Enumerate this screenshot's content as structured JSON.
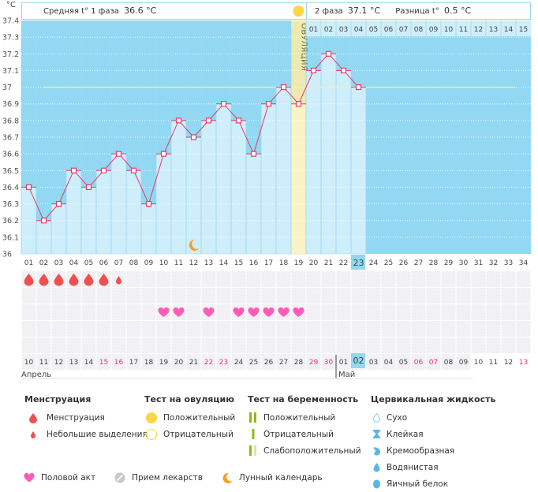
{
  "header": {
    "unit": "°C",
    "phase1_label": "Средняя t° 1 фаза",
    "phase1_value": "36.6 °C",
    "phase2_label": "2 фаза",
    "phase2_value": "37.1 °C",
    "diff_label": "Разница t°",
    "diff_value": "0.5 °C"
  },
  "ovulation_label": "ОВУЛЯЦИЯ",
  "chart_data": {
    "type": "line",
    "title": "",
    "xlabel": "",
    "ylabel": "°C",
    "ylim": [
      36.0,
      37.4
    ],
    "y_ticks": [
      "36",
      "36.1",
      "36.2",
      "36.3",
      "36.4",
      "36.5",
      "36.6",
      "36.7",
      "36.8",
      "36.9",
      "37",
      "37.1",
      "37.2",
      "37.3",
      "37.4"
    ],
    "cycle_days": [
      "01",
      "02",
      "03",
      "04",
      "05",
      "06",
      "07",
      "08",
      "09",
      "10",
      "11",
      "12",
      "13",
      "14",
      "15",
      "16",
      "17",
      "18",
      "19",
      "20",
      "21",
      "22",
      "23",
      "24",
      "25",
      "26",
      "27",
      "28",
      "29",
      "30",
      "31",
      "32",
      "33",
      "34"
    ],
    "current_cycle_day": "23",
    "series": [
      {
        "name": "Базальная температура",
        "color": "#e8396b",
        "values": [
          36.4,
          36.2,
          36.3,
          36.5,
          36.4,
          36.5,
          36.6,
          36.5,
          36.3,
          36.6,
          36.8,
          36.7,
          36.8,
          36.9,
          36.8,
          36.6,
          36.9,
          37.0,
          36.9,
          37.1,
          37.2,
          37.1,
          37.0
        ]
      }
    ],
    "coverline": {
      "value": 37.0,
      "color": "#f5f0a0",
      "from_day": "02",
      "to_day": "33"
    },
    "ovulation_day": "19",
    "phase2_day_labels": [
      "01",
      "02",
      "03",
      "04",
      "05",
      "06",
      "07",
      "08",
      "09",
      "10",
      "11",
      "12",
      "13",
      "14",
      "15"
    ],
    "calendar_dates": [
      "10",
      "11",
      "12",
      "13",
      "14",
      "15",
      "16",
      "17",
      "18",
      "19",
      "20",
      "21",
      "22",
      "23",
      "24",
      "25",
      "26",
      "27",
      "28",
      "29",
      "30",
      "01",
      "02",
      "03",
      "04",
      "05",
      "06",
      "07",
      "08",
      "09",
      "10",
      "11",
      "12",
      "13"
    ],
    "weekend_date_indices": [
      5,
      6,
      12,
      13,
      19,
      20,
      26,
      27,
      33
    ],
    "today_date": "02",
    "months": [
      {
        "name": "Апрель",
        "start_index": 0
      },
      {
        "name": "Май",
        "start_index": 21
      }
    ],
    "menstruation": [
      {
        "day": "01",
        "type": "full"
      },
      {
        "day": "02",
        "type": "full"
      },
      {
        "day": "03",
        "type": "full"
      },
      {
        "day": "04",
        "type": "full"
      },
      {
        "day": "05",
        "type": "full"
      },
      {
        "day": "06",
        "type": "full"
      },
      {
        "day": "07",
        "type": "light"
      }
    ],
    "intercourse_days": [
      "10",
      "11",
      "13",
      "15",
      "16",
      "17",
      "18",
      "19"
    ],
    "lunar_days": [
      "12"
    ],
    "colors": {
      "plot_bg": "#92d8f2",
      "bar_fill": "#cfeefb",
      "ovulation_fill": "#fbf2c6",
      "grid": "#ffffff",
      "today_highlight": "#92d8f2",
      "weekend_text": "#e8396b",
      "drop": "#f05050",
      "heart": "#ff5cb8",
      "moon": "#f5a020"
    }
  },
  "legend": {
    "menstruation": {
      "title": "Менструация",
      "items": [
        "Менструация",
        "Небольшие выделения"
      ]
    },
    "ovulation_test": {
      "title": "Тест на овуляцию",
      "items": [
        "Положительный",
        "Отрицательный"
      ]
    },
    "pregnancy_test": {
      "title": "Тест на беременность",
      "items": [
        "Положительный",
        "Отрицательный",
        "Слабоположительный"
      ]
    },
    "cervical_fluid": {
      "title": "Цервикальная жидкость",
      "items": [
        "Сухо",
        "Клейкая",
        "Кремообразная",
        "Водянистая",
        "Яичный белок"
      ]
    },
    "other": {
      "items": [
        "Половой акт",
        "Прием лекарств",
        "Лунный календарь"
      ]
    }
  }
}
